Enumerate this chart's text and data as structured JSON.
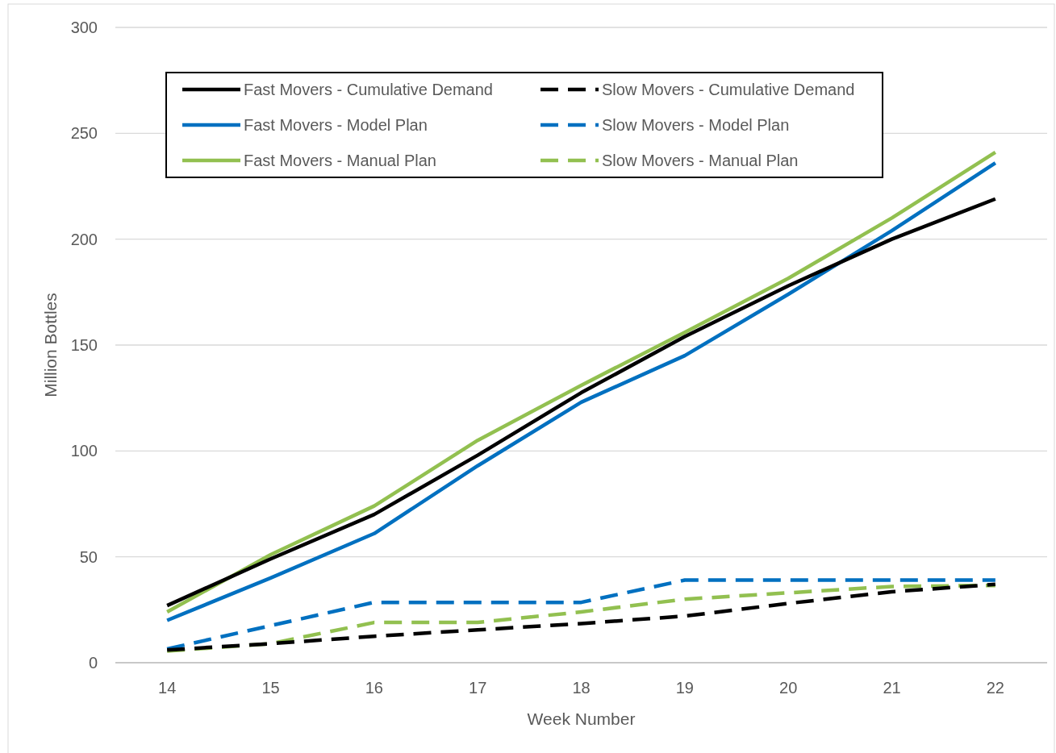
{
  "chart_data": {
    "type": "line",
    "xlabel": "Week Number",
    "ylabel": "Million Bottles",
    "x": [
      14,
      15,
      16,
      17,
      18,
      19,
      20,
      21,
      22
    ],
    "xlim": [
      13.5,
      22.5
    ],
    "xticks": [
      14,
      15,
      16,
      17,
      18,
      19,
      20,
      21,
      22
    ],
    "ylim": [
      0,
      300
    ],
    "yticks": [
      0,
      50,
      100,
      150,
      200,
      250,
      300
    ],
    "grid": "y",
    "legend": "top left",
    "marker": "none",
    "series": [
      {
        "name": "Fast Movers - Cumulative Demand",
        "color": "#000000",
        "line_style": "solid",
        "values": [
          27,
          49,
          70,
          98,
          127.5,
          154,
          178,
          200,
          219
        ]
      },
      {
        "name": "Slow Movers - Cumulative Demand",
        "color": "#000000",
        "line_style": "dashed",
        "values": [
          6,
          9,
          12.5,
          15.5,
          18.5,
          22,
          28,
          33.5,
          37
        ]
      },
      {
        "name": "Fast Movers - Model Plan",
        "color": "#0070c0",
        "line_style": "solid",
        "values": [
          20,
          40,
          61,
          93,
          123,
          145,
          174,
          204,
          236
        ]
      },
      {
        "name": "Slow Movers - Model Plan",
        "color": "#0070c0",
        "line_style": "dashed",
        "values": [
          6.5,
          17.5,
          28.5,
          28.5,
          28.5,
          39,
          39,
          39,
          39
        ]
      },
      {
        "name": "Fast Movers - Manual Plan",
        "color": "#92c050",
        "line_style": "solid",
        "values": [
          24,
          51,
          74,
          105,
          131,
          156,
          181.5,
          210,
          241
        ]
      },
      {
        "name": "Slow Movers - Manual Plan",
        "color": "#92c050",
        "line_style": "dashed",
        "values": [
          5.5,
          9,
          19,
          19,
          24,
          30,
          33,
          36,
          36.5
        ]
      }
    ]
  }
}
